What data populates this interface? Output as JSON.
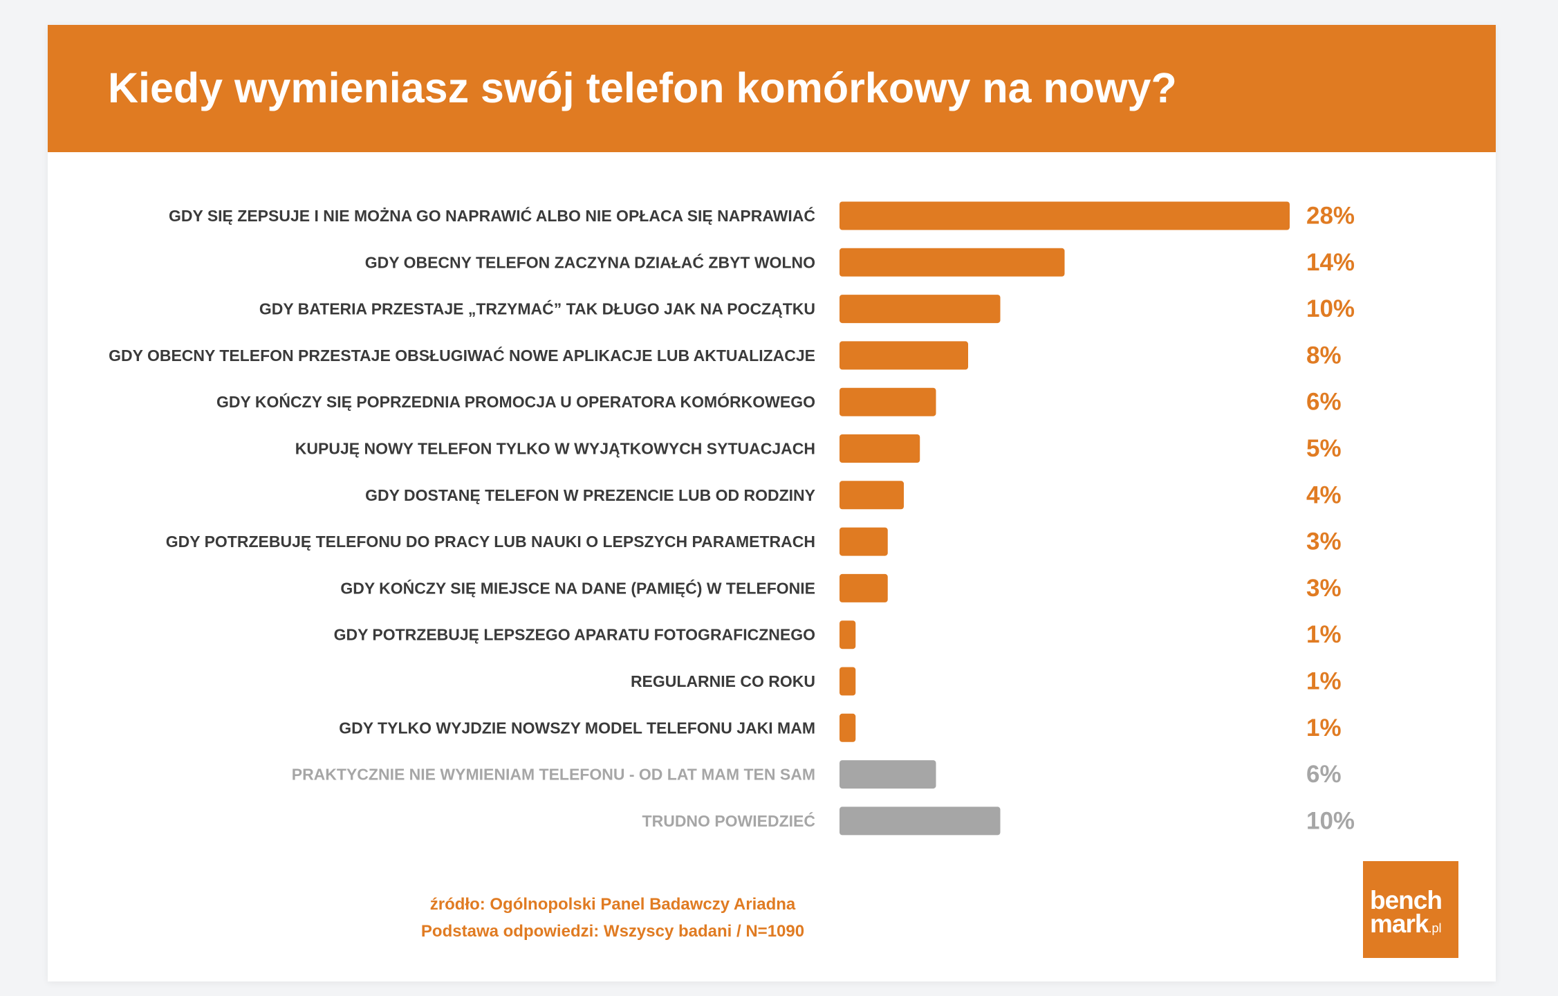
{
  "title": "Kiedy wymieniasz swój telefon komórkowy na nowy?",
  "colors": {
    "accent": "#e07b22",
    "bar_main": "#e07b22",
    "bar_other": "#a6a6a6",
    "label_main": "#3a3a3a",
    "label_other": "#a6a6a6",
    "background": "#ffffff",
    "page_background": "#f3f4f6"
  },
  "chart_data": {
    "type": "bar",
    "orientation": "horizontal",
    "title": "Kiedy wymieniasz swój telefon komórkowy na nowy?",
    "categories": [
      "GDY SIĘ ZEPSUJE I NIE MOŻNA GO NAPRAWIĆ ALBO NIE OPŁACA SIĘ NAPRAWIAĆ",
      "GDY OBECNY TELEFON ZACZYNA DZIAŁAĆ ZBYT WOLNO",
      "GDY BATERIA PRZESTAJE „TRZYMAĆ” TAK DŁUGO JAK NA POCZĄTKU",
      "GDY OBECNY TELEFON PRZESTAJE OBSŁUGIWAĆ NOWE APLIKACJE LUB AKTUALIZACJE",
      "GDY KOŃCZY SIĘ POPRZEDNIA PROMOCJA U OPERATORA KOMÓRKOWEGO",
      "KUPUJĘ NOWY TELEFON TYLKO W WYJĄTKOWYCH SYTUACJACH",
      "GDY DOSTANĘ TELEFON W PREZENCIE LUB OD RODZINY",
      "GDY POTRZEBUJĘ TELEFONU DO PRACY LUB NAUKI O LEPSZYCH PARAMETRACH",
      "GDY KOŃCZY SIĘ MIEJSCE NA DANE (PAMIĘĆ) W TELEFONIE",
      "GDY POTRZEBUJĘ LEPSZEGO APARATU FOTOGRAFICZNEGO",
      "REGULARNIE CO ROKU",
      "GDY TYLKO WYJDZIE NOWSZY MODEL TELEFONU JAKI MAM",
      "PRAKTYCZNIE NIE WYMIENIAM TELEFONU - OD LAT MAM TEN SAM",
      "TRUDNO POWIEDZIEĆ"
    ],
    "values": [
      28,
      14,
      10,
      8,
      6,
      5,
      4,
      3,
      3,
      1,
      1,
      1,
      6,
      10
    ],
    "value_labels": [
      "28%",
      "14%",
      "10%",
      "8%",
      "6%",
      "5%",
      "4%",
      "3%",
      "3%",
      "1%",
      "1%",
      "1%",
      "6%",
      "10%"
    ],
    "muted": [
      false,
      false,
      false,
      false,
      false,
      false,
      false,
      false,
      false,
      false,
      false,
      false,
      true,
      true
    ],
    "unit": "%",
    "xlim": [
      0,
      28
    ],
    "grid": false,
    "legend": "none",
    "xlabel": "",
    "ylabel": ""
  },
  "footer": {
    "source": "źródło: Ogólnopolski Panel Badawczy Ariadna",
    "base": "Podstawa odpowiedzi: Wszyscy badani / N=1090"
  },
  "logo": {
    "line1": "bench",
    "line2": "mark",
    "suffix": ".pl"
  }
}
